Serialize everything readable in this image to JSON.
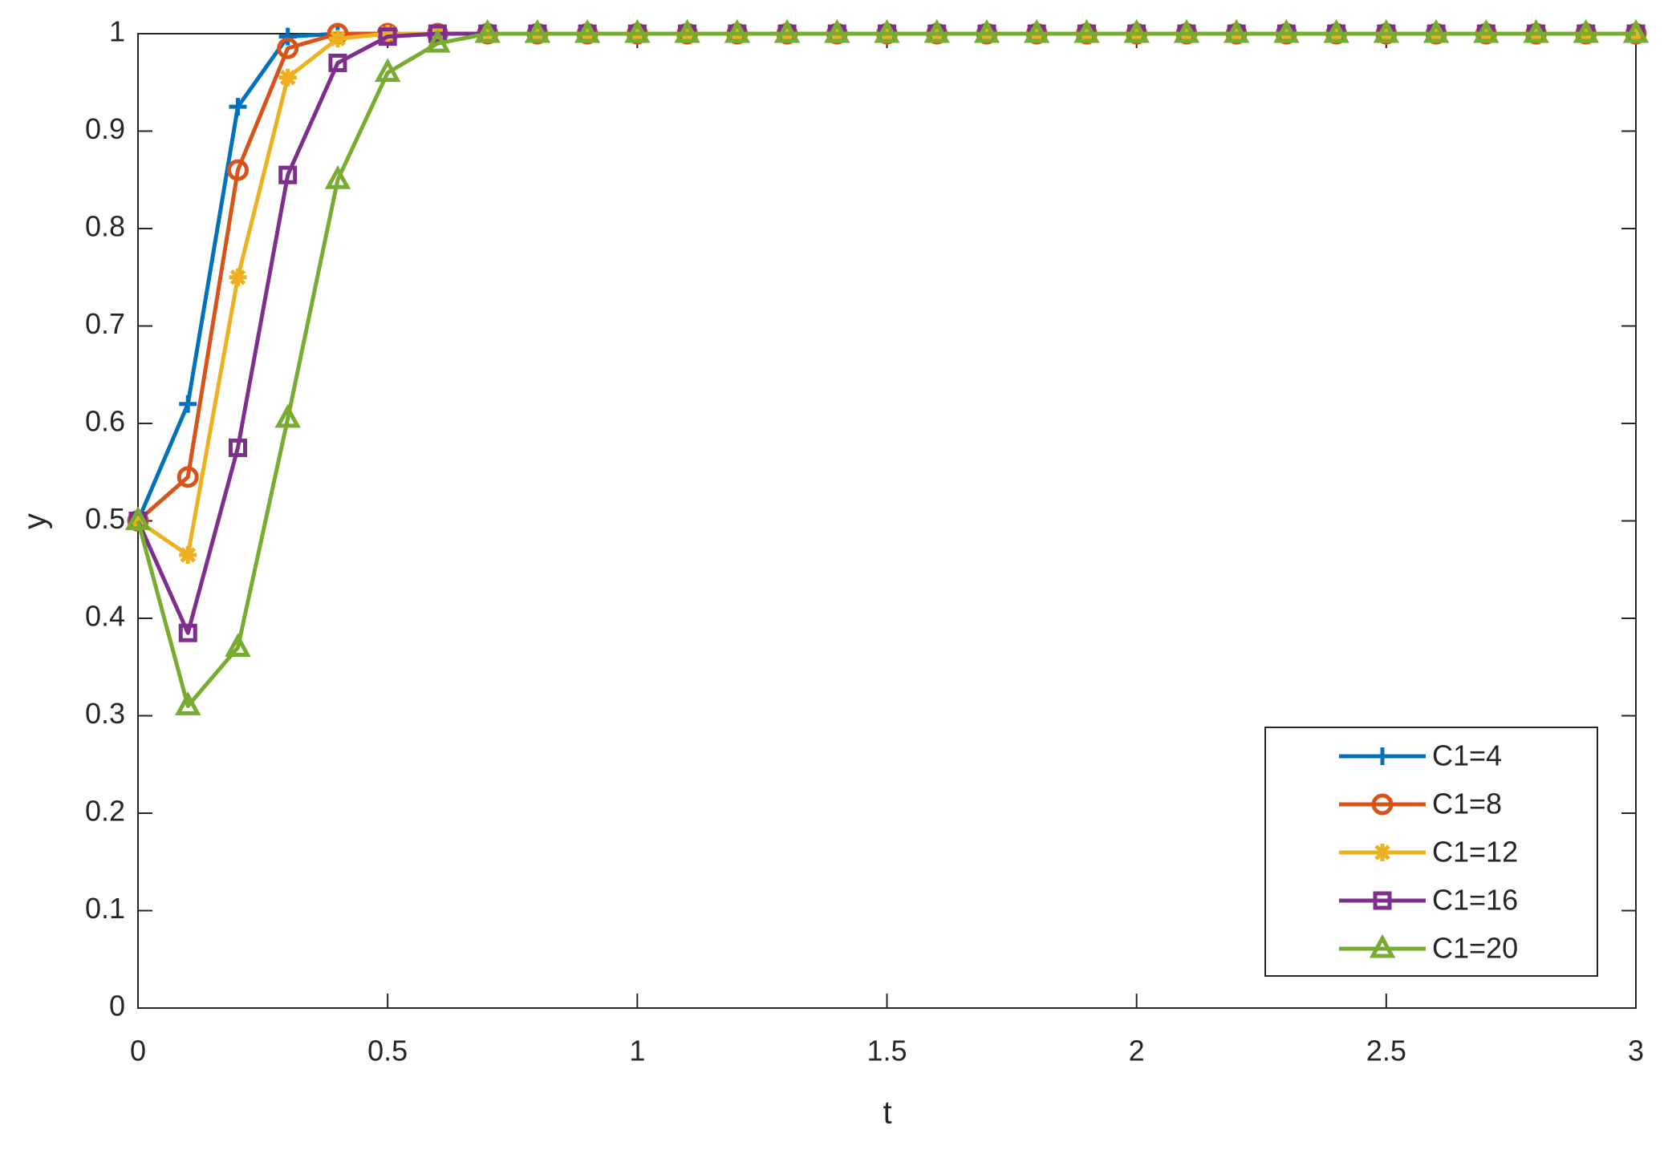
{
  "chart_data": {
    "type": "line",
    "x_label": "t",
    "y_label": "y",
    "x": [
      0,
      0.1,
      0.2,
      0.3,
      0.4,
      0.5,
      0.6,
      0.7,
      0.8,
      0.9,
      1,
      1.1,
      1.2,
      1.3,
      1.4,
      1.5,
      1.6,
      1.7,
      1.8,
      1.9,
      2,
      2.1,
      2.2,
      2.3,
      2.4,
      2.5,
      2.6,
      2.7,
      2.8,
      2.9,
      3
    ],
    "series": [
      {
        "name": "C1=4",
        "color": "#0072BD",
        "marker": "plus",
        "values": [
          0.5,
          0.62,
          0.925,
          0.997,
          1,
          1,
          1,
          1,
          1,
          1,
          1,
          1,
          1,
          1,
          1,
          1,
          1,
          1,
          1,
          1,
          1,
          1,
          1,
          1,
          1,
          1,
          1,
          1,
          1,
          1,
          1
        ]
      },
      {
        "name": "C1=8",
        "color": "#D95319",
        "marker": "circle",
        "values": [
          0.5,
          0.545,
          0.86,
          0.985,
          1,
          1,
          1,
          1,
          1,
          1,
          1,
          1,
          1,
          1,
          1,
          1,
          1,
          1,
          1,
          1,
          1,
          1,
          1,
          1,
          1,
          1,
          1,
          1,
          1,
          1,
          1
        ]
      },
      {
        "name": "C1=12",
        "color": "#EDB120",
        "marker": "star",
        "values": [
          0.5,
          0.465,
          0.75,
          0.955,
          0.995,
          1,
          1,
          1,
          1,
          1,
          1,
          1,
          1,
          1,
          1,
          1,
          1,
          1,
          1,
          1,
          1,
          1,
          1,
          1,
          1,
          1,
          1,
          1,
          1,
          1,
          1
        ]
      },
      {
        "name": "C1=16",
        "color": "#7E2F8E",
        "marker": "square",
        "values": [
          0.5,
          0.385,
          0.575,
          0.855,
          0.97,
          0.997,
          1,
          1,
          1,
          1,
          1,
          1,
          1,
          1,
          1,
          1,
          1,
          1,
          1,
          1,
          1,
          1,
          1,
          1,
          1,
          1,
          1,
          1,
          1,
          1,
          1
        ]
      },
      {
        "name": "C1=20",
        "color": "#77AC30",
        "marker": "triangle",
        "values": [
          0.5,
          0.31,
          0.37,
          0.605,
          0.85,
          0.96,
          0.99,
          1,
          1,
          1,
          1,
          1,
          1,
          1,
          1,
          1,
          1,
          1,
          1,
          1,
          1,
          1,
          1,
          1,
          1,
          1,
          1,
          1,
          1,
          1,
          1
        ]
      }
    ],
    "xlim": [
      0,
      3
    ],
    "ylim": [
      0,
      1
    ],
    "xticks": [
      0,
      0.5,
      1,
      1.5,
      2,
      2.5,
      3
    ],
    "yticks": [
      0,
      0.1,
      0.2,
      0.3,
      0.4,
      0.5,
      0.6,
      0.7,
      0.8,
      0.9,
      1
    ],
    "grid": false,
    "legend": "southeast"
  }
}
